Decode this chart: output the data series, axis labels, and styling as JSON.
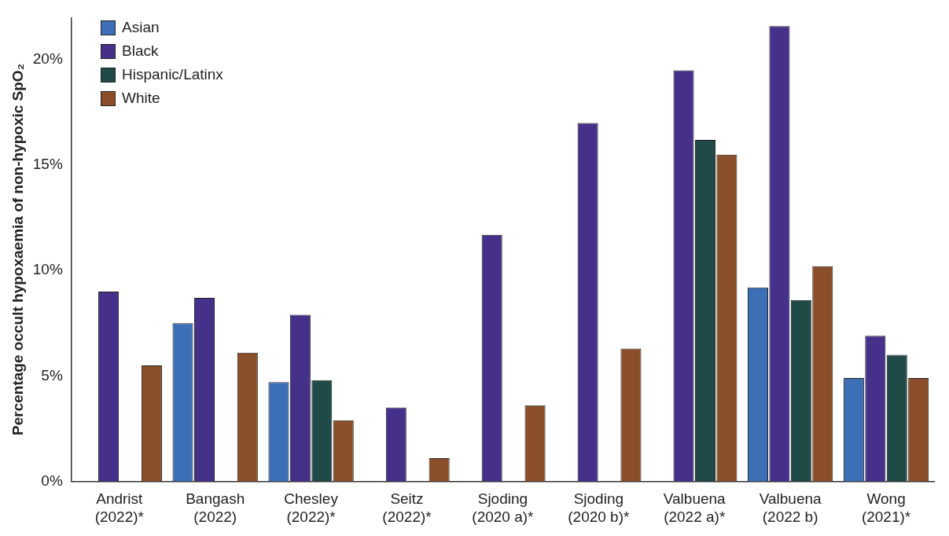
{
  "chart_data": {
    "type": "bar",
    "ylabel": "Percentage occult hypoxaemia of non-hypoxic SpO₂",
    "categories": [
      "Andrist (2022)*",
      "Bangash (2022)",
      "Chesley (2022)*",
      "Seitz (2022)*",
      "Sjoding (2020 a)*",
      "Sjoding (2020 b)*",
      "Valbuena (2022 a)*",
      "Valbuena (2022 b)",
      "Wong (2021)*"
    ],
    "series": [
      {
        "name": "Asian",
        "color": "#3d6fb6",
        "values": [
          null,
          7.5,
          4.7,
          null,
          null,
          null,
          null,
          9.2,
          4.9
        ]
      },
      {
        "name": "Black",
        "color": "#45308a",
        "values": [
          9.0,
          8.7,
          7.9,
          3.5,
          11.7,
          17.0,
          19.5,
          21.6,
          6.9
        ]
      },
      {
        "name": "Hispanic/Latinx",
        "color": "#1f4a48",
        "values": [
          null,
          null,
          4.8,
          null,
          null,
          null,
          16.2,
          8.6,
          6.0
        ]
      },
      {
        "name": "White",
        "color": "#8a4f2a",
        "values": [
          5.5,
          6.1,
          2.9,
          1.1,
          3.6,
          6.3,
          15.5,
          10.2,
          4.9
        ]
      }
    ],
    "ylim": [
      0,
      22
    ],
    "yticks": [
      {
        "value": 0,
        "label": "0%"
      },
      {
        "value": 5,
        "label": "5%"
      },
      {
        "value": 10,
        "label": "10%"
      },
      {
        "value": 15,
        "label": "15%"
      },
      {
        "value": 20,
        "label": "20%"
      }
    ],
    "grid": false,
    "legend": "top left"
  }
}
